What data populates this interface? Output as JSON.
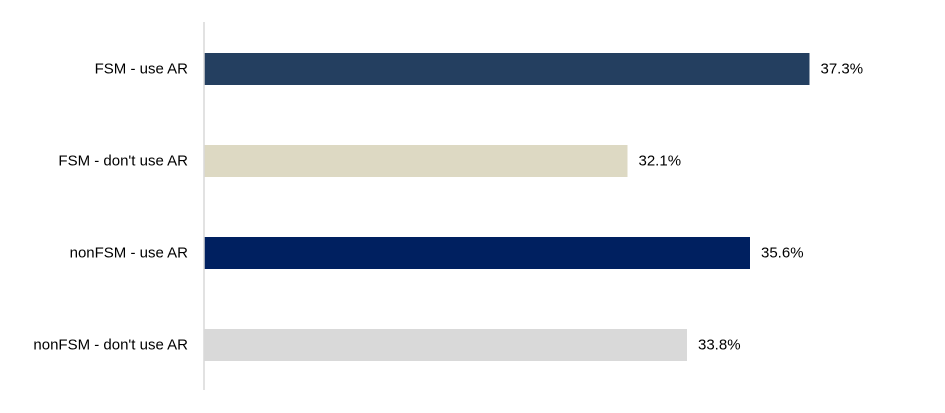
{
  "chart_data": {
    "type": "bar",
    "orientation": "horizontal",
    "title": "",
    "xlabel": "",
    "ylabel": "",
    "categories": [
      "FSM - use AR",
      "FSM - don't use AR",
      "nonFSM - use AR",
      "nonFSM - don't use AR"
    ],
    "values": [
      37.3,
      32.1,
      35.6,
      33.8
    ],
    "value_labels": [
      "37.3%",
      "32.1%",
      "35.6%",
      "33.8%"
    ],
    "colors": [
      "#243F60",
      "#DDD9C3",
      "#002060",
      "#D9D9D9"
    ],
    "xlim": [
      20,
      40
    ],
    "grid": false,
    "legend": "none"
  }
}
